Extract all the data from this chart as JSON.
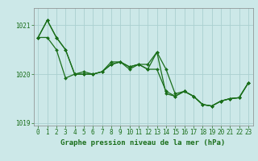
{
  "xlabel": "Graphe pression niveau de la mer (hPa)",
  "bg_color": "#cce8e8",
  "plot_bg_color": "#cce8e8",
  "grid_color": "#aad0d0",
  "line_color": "#1a6e1a",
  "ylim": [
    1018.95,
    1021.35
  ],
  "yticks": [
    1019,
    1020,
    1021
  ],
  "xlim": [
    -0.5,
    23.5
  ],
  "xticks": [
    0,
    1,
    2,
    3,
    4,
    5,
    6,
    7,
    8,
    9,
    10,
    11,
    12,
    13,
    14,
    15,
    16,
    17,
    18,
    19,
    20,
    21,
    22,
    23
  ],
  "series1": [
    1020.75,
    1021.1,
    1020.75,
    1020.5,
    1020.0,
    1020.0,
    1020.0,
    1020.05,
    1020.2,
    1020.25,
    1020.15,
    1020.2,
    1020.1,
    1020.45,
    1020.1,
    1019.6,
    1019.65,
    1019.55,
    1019.38,
    1019.35,
    1019.45,
    1019.5,
    1019.52,
    1019.82
  ],
  "series2": [
    1020.75,
    1020.75,
    1020.5,
    1019.92,
    1020.0,
    1020.05,
    1020.0,
    1020.05,
    1020.2,
    1020.25,
    1020.15,
    1020.2,
    1020.1,
    1020.1,
    1019.65,
    1019.55,
    1019.65,
    1019.55,
    1019.38,
    1019.35,
    1019.45,
    1019.5,
    1019.52,
    1019.82
  ],
  "series3": [
    1020.75,
    1021.1,
    1020.75,
    1020.5,
    1020.0,
    1020.0,
    1020.0,
    1020.05,
    1020.25,
    1020.25,
    1020.1,
    1020.2,
    1020.2,
    1020.45,
    1019.6,
    1019.55,
    1019.65,
    1019.55,
    1019.38,
    1019.35,
    1019.45,
    1019.5,
    1019.52,
    1019.82
  ],
  "tick_fontsize": 5.5,
  "xlabel_fontsize": 6.5,
  "marker_size": 2.0,
  "linewidth": 0.9
}
